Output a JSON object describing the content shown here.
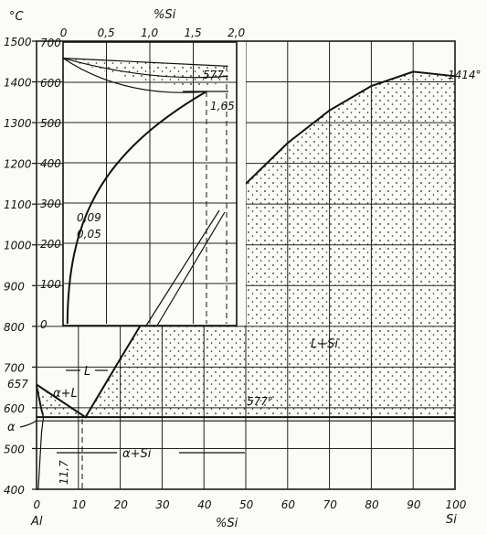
{
  "chart_data": {
    "type": "line",
    "main": {
      "y_unit": "°C",
      "y_ticks": [
        "1500",
        "1400",
        "1300",
        "1200",
        "1100",
        "1000",
        "900",
        "800",
        "700",
        "600",
        "500",
        "400"
      ],
      "y_special_ticks": [
        "657"
      ],
      "x_ticks": [
        "0",
        "10",
        "20",
        "30",
        "40",
        "50",
        "60",
        "70",
        "80",
        "90",
        "100"
      ],
      "x_axis_label": "%Si",
      "x_left_end_label": "Al",
      "x_right_end_label": "Si",
      "xlim": [
        0,
        100
      ],
      "ylim": [
        400,
        1500
      ],
      "series": [
        {
          "values": {
            "x": [
              0,
              11.7,
              20,
              30,
              40,
              50,
              60,
              70,
              80,
              90,
              100
            ],
            "y": [
              657,
              577,
              720,
              890,
              1030,
              1150,
              1250,
              1330,
              1390,
              1425,
              1414
            ]
          }
        },
        {
          "values": {
            "x": [
              0,
              1.65
            ],
            "y": [
              657,
              577
            ]
          }
        },
        {
          "values": {
            "x": [
              0,
              0.5,
              1.0,
              1.3,
              1.65
            ],
            "y": [
              657,
              620,
              600,
              590,
              577
            ]
          }
        },
        {
          "values": {
            "x": [
              0,
              100
            ],
            "y": [
              577,
              577
            ]
          }
        }
      ],
      "phase_labels": [
        "L",
        "α+L",
        "α",
        "L+Si",
        "α+Si"
      ],
      "point_labels": [
        "577°",
        "1414°",
        "11,7"
      ]
    },
    "inset": {
      "x_axis_label": "%Si",
      "x_ticks": [
        "0",
        "0,5",
        "1,0",
        "1,5",
        "2,0"
      ],
      "y_ticks": [
        "700",
        "600",
        "500",
        "400",
        "300",
        "200",
        "100",
        "0"
      ],
      "xlim": [
        0,
        2.0
      ],
      "ylim": [
        0,
        700
      ],
      "series": [
        {
          "values": {
            "x": [
              0,
              0.5,
              1.0,
              1.5,
              1.8,
              1.9
            ],
            "y": [
              660,
              600,
              560,
              545,
              577,
              577
            ]
          }
        },
        {
          "values": {
            "x": [
              0.05,
              0.2,
              0.5,
              1.0,
              1.5,
              1.65
            ],
            "y": [
              0,
              210,
              350,
              470,
              560,
              577
            ]
          }
        }
      ],
      "annotations": [
        "577",
        "1,65",
        "0,09",
        "0,05"
      ]
    }
  }
}
